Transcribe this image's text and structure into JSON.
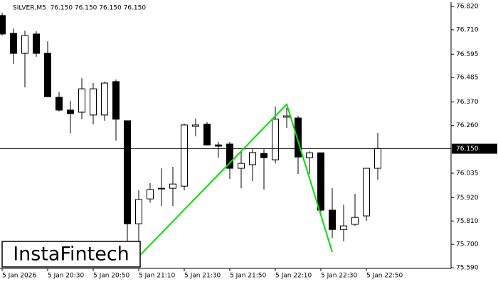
{
  "chart_data": {
    "type": "candlestick",
    "title": "SILVER,M5  76.150 76.150 76.150 76.150",
    "categories": [
      "5 Jan 2026",
      null,
      null,
      null,
      "5 Jan 20:30",
      null,
      null,
      null,
      "5 Jan 20:50",
      null,
      null,
      null,
      "5 Jan 21:10",
      null,
      null,
      null,
      "5 Jan 21:30",
      null,
      null,
      null,
      "5 Jan 21:50",
      null,
      null,
      null,
      "5 Jan 22:10",
      null,
      null,
      null,
      "5 Jan 22:30",
      null,
      null,
      null,
      "5 Jan 22:50",
      null
    ],
    "open": [
      76.777,
      76.693,
      76.599,
      76.69,
      76.599,
      76.392,
      76.332,
      76.322,
      76.309,
      76.309,
      76.466,
      76.282,
      75.797,
      75.914,
      75.961,
      75.964,
      75.974,
      76.255,
      76.265,
      76.168,
      76.172,
      76.058,
      76.075,
      76.128,
      76.098,
      76.299,
      76.295,
      76.108,
      76.131,
      75.861,
      75.77,
      75.794,
      75.834,
      76.058
    ],
    "high": [
      76.79,
      76.716,
      76.706,
      76.703,
      76.656,
      76.416,
      76.375,
      76.482,
      76.459,
      76.466,
      76.476,
      76.282,
      75.954,
      75.988,
      76.058,
      76.065,
      76.268,
      76.292,
      76.275,
      76.182,
      76.182,
      76.138,
      76.148,
      76.148,
      76.349,
      76.342,
      76.305,
      76.138,
      76.131,
      75.964,
      75.887,
      75.938,
      76.058,
      76.225
    ],
    "low": [
      76.683,
      76.549,
      76.439,
      76.583,
      76.392,
      76.325,
      76.222,
      76.289,
      76.265,
      76.282,
      76.188,
      75.714,
      75.714,
      75.897,
      75.881,
      75.881,
      75.954,
      76.208,
      76.165,
      76.108,
      76.008,
      75.964,
      75.998,
      75.958,
      76.081,
      76.248,
      76.031,
      76.031,
      75.854,
      75.73,
      75.714,
      75.787,
      75.811,
      76.004
    ],
    "close": [
      76.69,
      76.599,
      76.683,
      76.599,
      76.395,
      76.332,
      76.315,
      76.432,
      76.432,
      76.459,
      76.289,
      75.797,
      75.911,
      75.958,
      75.964,
      75.984,
      76.262,
      76.262,
      76.168,
      76.162,
      76.058,
      76.081,
      76.132,
      76.108,
      76.289,
      76.305,
      76.111,
      76.131,
      75.861,
      75.77,
      75.787,
      75.827,
      76.058,
      76.151
    ],
    "ylim": [
      75.587,
      76.84
    ],
    "yticks": [
      {
        "value": 75.59,
        "label": "75.590"
      },
      {
        "value": 75.7,
        "label": "75.700"
      },
      {
        "value": 75.81,
        "label": "75.810"
      },
      {
        "value": 75.92,
        "label": "75.920"
      },
      {
        "value": 76.035,
        "label": "76.035"
      },
      {
        "value": 76.26,
        "label": "76.260"
      },
      {
        "value": 76.37,
        "label": "76.370"
      },
      {
        "value": 76.485,
        "label": "76.485"
      },
      {
        "value": 76.595,
        "label": "76.595"
      },
      {
        "value": 76.71,
        "label": "76.710"
      },
      {
        "value": 76.82,
        "label": "76.820"
      }
    ],
    "current_price": {
      "value": 76.15,
      "label": "76.150"
    },
    "pattern": {
      "color": "#00e000",
      "x": [
        12,
        25,
        29
      ],
      "values": [
        75.643,
        76.359,
        75.664
      ]
    },
    "logo": "InstaFintech"
  }
}
